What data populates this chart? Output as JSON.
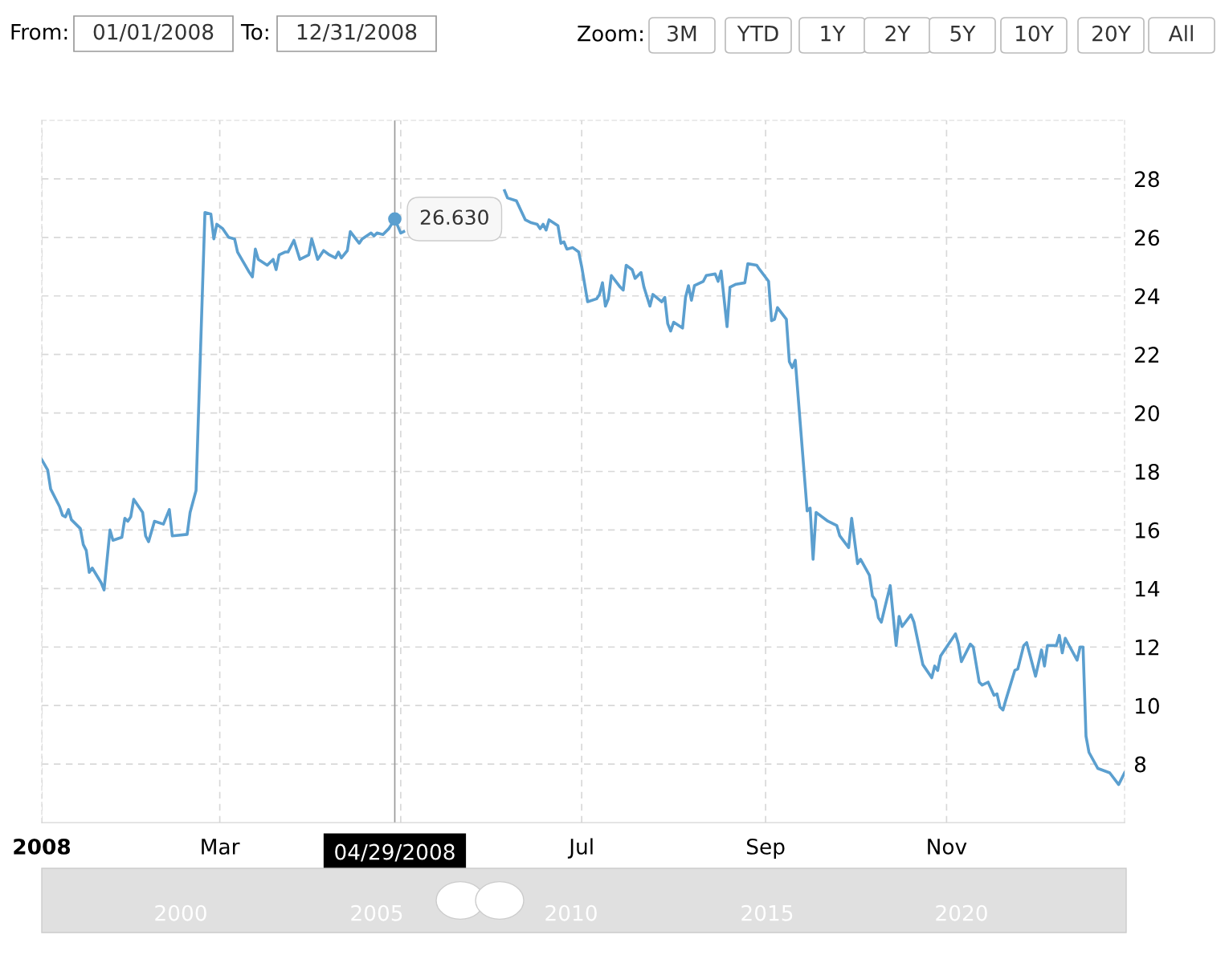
{
  "chart_data": {
    "type": "line",
    "x": [
      "2008-01-01",
      "2008-01-03",
      "2008-01-04",
      "2008-01-07",
      "2008-01-08",
      "2008-01-09",
      "2008-01-10",
      "2008-01-11",
      "2008-01-14",
      "2008-01-15",
      "2008-01-16",
      "2008-01-17",
      "2008-01-18",
      "2008-01-21",
      "2008-01-22",
      "2008-01-24",
      "2008-01-25",
      "2008-01-28",
      "2008-01-29",
      "2008-01-30",
      "2008-01-31",
      "2008-02-01",
      "2008-02-04",
      "2008-02-05",
      "2008-02-06",
      "2008-02-08",
      "2008-02-11",
      "2008-02-13",
      "2008-02-14",
      "2008-02-19",
      "2008-02-20",
      "2008-02-22",
      "2008-02-25",
      "2008-02-27",
      "2008-02-28",
      "2008-02-29",
      "2008-03-02",
      "2008-03-04",
      "2008-03-06",
      "2008-03-07",
      "2008-03-09",
      "2008-03-11",
      "2008-03-12",
      "2008-03-13",
      "2008-03-14",
      "2008-03-17",
      "2008-03-19",
      "2008-03-20",
      "2008-03-21",
      "2008-03-23",
      "2008-03-24",
      "2008-03-26",
      "2008-03-28",
      "2008-03-31",
      "2008-04-01",
      "2008-04-03",
      "2008-04-05",
      "2008-04-07",
      "2008-04-09",
      "2008-04-10",
      "2008-04-11",
      "2008-04-13",
      "2008-04-14",
      "2008-04-17",
      "2008-04-18",
      "2008-04-21",
      "2008-04-22",
      "2008-04-23",
      "2008-04-25",
      "2008-04-27",
      "2008-04-29",
      "2008-05-01",
      "2008-05-02",
      "2008-05-20",
      "2008-06-05",
      "2008-06-06",
      "2008-06-09",
      "2008-06-12",
      "2008-06-14",
      "2008-06-16",
      "2008-06-17",
      "2008-06-18",
      "2008-06-19",
      "2008-06-20",
      "2008-06-23",
      "2008-06-24",
      "2008-06-25",
      "2008-06-26",
      "2008-06-28",
      "2008-06-30",
      "2008-07-01",
      "2008-07-03",
      "2008-07-06",
      "2008-07-07",
      "2008-07-08",
      "2008-07-09",
      "2008-07-10",
      "2008-07-11",
      "2008-07-14",
      "2008-07-15",
      "2008-07-16",
      "2008-07-18",
      "2008-07-19",
      "2008-07-21",
      "2008-07-22",
      "2008-07-24",
      "2008-07-25",
      "2008-07-28",
      "2008-07-29",
      "2008-07-30",
      "2008-07-31",
      "2008-08-01",
      "2008-08-04",
      "2008-08-05",
      "2008-08-06",
      "2008-08-07",
      "2008-08-08",
      "2008-08-11",
      "2008-08-12",
      "2008-08-15",
      "2008-08-16",
      "2008-08-17",
      "2008-08-19",
      "2008-08-20",
      "2008-08-22",
      "2008-08-25",
      "2008-08-26",
      "2008-08-29",
      "2008-08-30",
      "2008-09-02",
      "2008-09-03",
      "2008-09-04",
      "2008-09-05",
      "2008-09-08",
      "2008-09-09",
      "2008-09-10",
      "2008-09-11",
      "2008-09-15",
      "2008-09-16",
      "2008-09-17",
      "2008-09-18",
      "2008-09-22",
      "2008-09-25",
      "2008-09-26",
      "2008-09-29",
      "2008-09-30",
      "2008-10-02",
      "2008-10-03",
      "2008-10-06",
      "2008-10-07",
      "2008-10-08",
      "2008-10-09",
      "2008-10-10",
      "2008-10-13",
      "2008-10-15",
      "2008-10-16",
      "2008-10-17",
      "2008-10-20",
      "2008-10-21",
      "2008-10-24",
      "2008-10-27",
      "2008-10-28",
      "2008-10-29",
      "2008-10-30",
      "2008-11-04",
      "2008-11-05",
      "2008-11-06",
      "2008-11-09",
      "2008-11-10",
      "2008-11-12",
      "2008-11-13",
      "2008-11-15",
      "2008-11-17",
      "2008-11-18",
      "2008-11-19",
      "2008-11-20",
      "2008-11-21",
      "2008-11-24",
      "2008-11-25",
      "2008-11-27",
      "2008-11-28",
      "2008-12-01",
      "2008-12-03",
      "2008-12-04",
      "2008-12-05",
      "2008-12-08",
      "2008-12-09",
      "2008-12-10",
      "2008-12-11",
      "2008-12-15",
      "2008-12-16",
      "2008-12-17",
      "2008-12-18",
      "2008-12-19",
      "2008-12-22",
      "2008-12-26",
      "2008-12-29",
      "2008-12-31"
    ],
    "series": [
      {
        "color": "#5b9fcf",
        "values": [
          18.4,
          18.05,
          17.4,
          16.8,
          16.5,
          16.45,
          16.7,
          16.35,
          16.05,
          15.5,
          15.3,
          14.55,
          14.7,
          14.2,
          13.95,
          16.0,
          15.65,
          15.75,
          16.4,
          16.3,
          16.45,
          17.05,
          16.6,
          15.8,
          15.6,
          16.3,
          16.2,
          16.7,
          15.8,
          15.85,
          16.6,
          17.35,
          26.85,
          26.8,
          25.95,
          26.45,
          26.3,
          26.0,
          25.95,
          25.5,
          25.15,
          24.8,
          24.65,
          25.6,
          25.25,
          25.05,
          25.25,
          24.9,
          25.4,
          25.5,
          25.5,
          25.9,
          25.25,
          25.4,
          25.95,
          25.25,
          25.55,
          25.4,
          25.3,
          25.5,
          25.3,
          25.55,
          26.2,
          25.8,
          25.95,
          26.15,
          26.05,
          26.15,
          26.1,
          26.3,
          26.63,
          26.15,
          26.2,
          null,
          27.6,
          27.35,
          27.25,
          26.6,
          26.5,
          26.45,
          26.3,
          26.45,
          26.25,
          26.6,
          26.4,
          25.8,
          25.85,
          25.6,
          25.65,
          25.5,
          25.0,
          23.8,
          23.9,
          24.05,
          24.45,
          23.65,
          23.9,
          24.7,
          24.3,
          24.2,
          25.05,
          24.9,
          24.6,
          24.8,
          24.3,
          23.65,
          24.05,
          23.8,
          23.95,
          23.05,
          22.8,
          23.1,
          22.9,
          23.95,
          24.35,
          23.85,
          24.35,
          24.5,
          24.7,
          24.75,
          24.5,
          24.85,
          22.95,
          24.3,
          24.4,
          24.45,
          25.1,
          25.05,
          24.9,
          24.5,
          23.15,
          23.2,
          23.6,
          23.2,
          21.75,
          21.55,
          21.8,
          16.65,
          16.75,
          15.0,
          16.6,
          16.3,
          16.15,
          15.8,
          15.4,
          16.4,
          14.85,
          15.0,
          14.45,
          13.75,
          13.6,
          13.0,
          12.85,
          14.1,
          12.05,
          13.05,
          12.7,
          13.1,
          12.85,
          11.4,
          10.95,
          11.35,
          11.2,
          11.7,
          12.45,
          12.1,
          11.5,
          12.1,
          12.0,
          10.8,
          10.7,
          10.8,
          10.35,
          10.4,
          9.95,
          9.85,
          10.2,
          11.2,
          11.25,
          12.05,
          12.15,
          11.0,
          11.9,
          11.35,
          12.05,
          12.05,
          12.4,
          11.8,
          12.3,
          11.55,
          12.0,
          12.0,
          8.95,
          8.4,
          7.85,
          7.7,
          7.3,
          7.7
        ]
      }
    ],
    "xlim": [
      "2008-01-01",
      "2008-12-31"
    ],
    "xticks": [
      {
        "value": "2008-01-01",
        "label": "2008"
      },
      {
        "value": "2008-03-01",
        "label": "Mar"
      },
      {
        "value": "2008-05-01",
        "label": null
      },
      {
        "value": "2008-07-01",
        "label": "Jul"
      },
      {
        "value": "2008-09-01",
        "label": "Sep"
      },
      {
        "value": "2008-11-01",
        "label": "Nov"
      }
    ],
    "ylim": [
      6,
      30
    ],
    "yticks": [
      8,
      10,
      12,
      14,
      16,
      18,
      20,
      22,
      24,
      26,
      28
    ],
    "grid": true,
    "line_style": "solid",
    "marker": "none",
    "ref_lines": [
      {
        "axis": "x",
        "value": "2008-04-29",
        "label": "04/29/2008",
        "color": "#999999"
      }
    ],
    "annotations": [
      {
        "text": "26.630",
        "x": "2008-04-29",
        "y": 26.63
      },
      "From:",
      "01/01/2008",
      "To:",
      "12/31/2008",
      "Zoom:",
      "3M",
      "YTD",
      "1Y",
      "2Y",
      "5Y",
      "10Y",
      "20Y",
      "All",
      "2000",
      "2005",
      "2010",
      "2015",
      "2020"
    ]
  }
}
